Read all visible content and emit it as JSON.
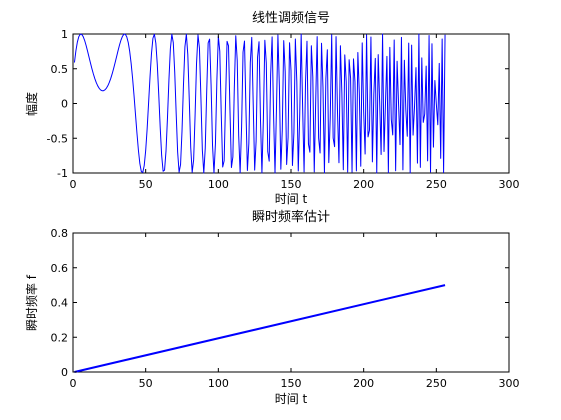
{
  "chart_data": [
    {
      "type": "line",
      "title": "线性调频信号",
      "xlabel": "时间 t",
      "ylabel": "幅度",
      "xlim": [
        0,
        300
      ],
      "ylim": [
        -1,
        1
      ],
      "xticks": [
        0,
        50,
        100,
        150,
        200,
        250,
        300
      ],
      "yticks": [
        -1,
        -0.5,
        0,
        0.5,
        1
      ],
      "xtick_labels": [
        "0",
        "50",
        "100",
        "150",
        "200",
        "250",
        "300"
      ],
      "ytick_labels": [
        "-1",
        "-0.5",
        "0",
        "0.5",
        "1"
      ],
      "grid": false,
      "series": [
        {
          "color": "#0000ff",
          "function": "cos(2*pi*(0.000977*t^2 - 0.04*t) + 1.185)",
          "x_range": [
            1,
            256
          ],
          "num_samples": 256
        }
      ]
    },
    {
      "type": "line",
      "title": "瞬时频率估计",
      "xlabel": "时间 t",
      "ylabel": "瞬时频率 f",
      "xlim": [
        0,
        300
      ],
      "ylim": [
        0,
        0.8
      ],
      "xticks": [
        0,
        50,
        100,
        150,
        200,
        250,
        300
      ],
      "yticks": [
        0,
        0.2,
        0.4,
        0.6,
        0.8
      ],
      "xtick_labels": [
        "0",
        "50",
        "100",
        "150",
        "200",
        "250",
        "300"
      ],
      "ytick_labels": [
        "0",
        "0.2",
        "0.4",
        "0.6",
        "0.8"
      ],
      "grid": false,
      "series": [
        {
          "color": "#0000ff",
          "x": [
            1,
            256
          ],
          "y": [
            0,
            0.5
          ]
        }
      ]
    }
  ]
}
